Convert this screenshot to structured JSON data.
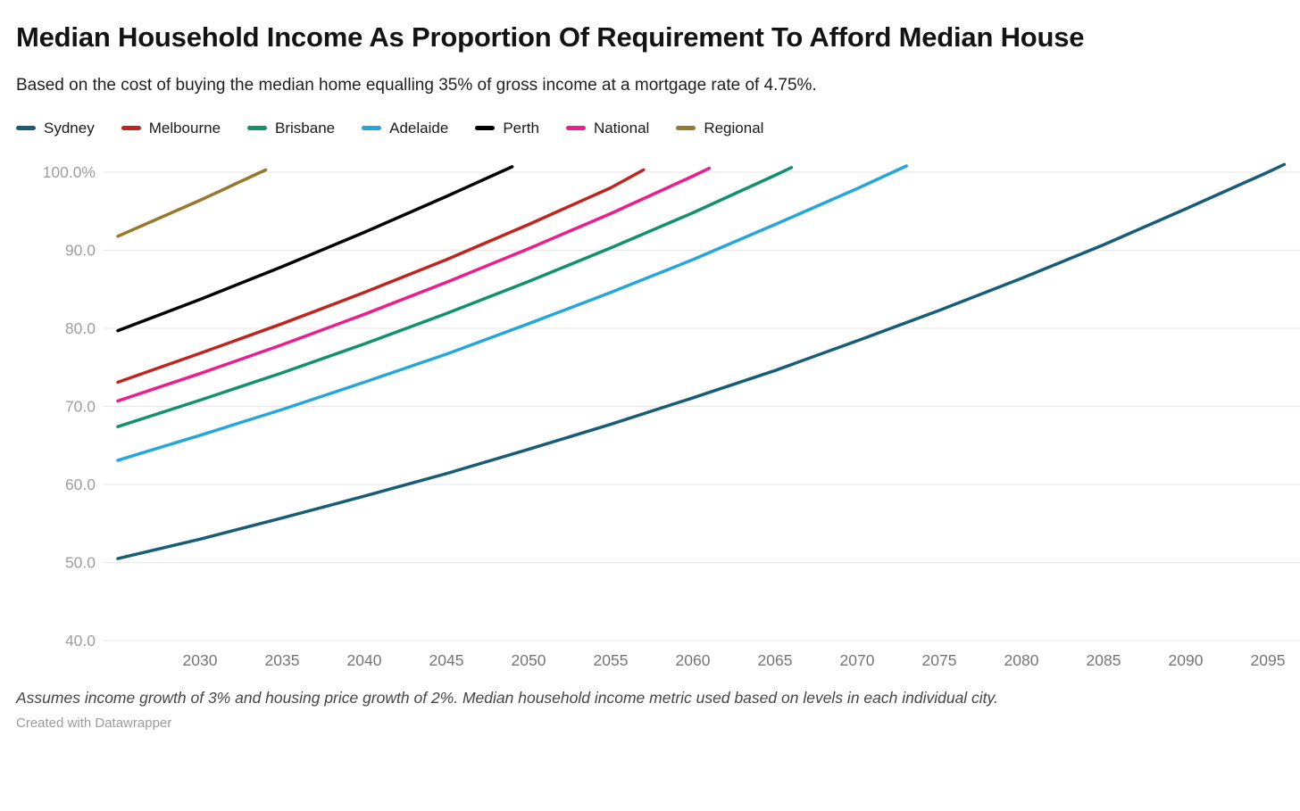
{
  "header": {
    "title": "Median Household Income As Proportion Of Requirement To Afford Median House",
    "subtitle": "Based on the cost of buying the median home equalling 35% of gross income at a mortgage rate of 4.75%."
  },
  "legend": [
    {
      "label": "Sydney",
      "color": "#175d77"
    },
    {
      "label": "Melbourne",
      "color": "#c0241e"
    },
    {
      "label": "Brisbane",
      "color": "#12916e"
    },
    {
      "label": "Adelaide",
      "color": "#27a6db"
    },
    {
      "label": "Perth",
      "color": "#000000"
    },
    {
      "label": "National",
      "color": "#ec1e8d"
    },
    {
      "label": "Regional",
      "color": "#97792c"
    }
  ],
  "chart_data": {
    "type": "line",
    "title": "Median Household Income As Proportion Of Requirement To Afford Median House",
    "xlabel": "",
    "ylabel": "",
    "xlim": [
      2025,
      2097.5
    ],
    "ylim": [
      40,
      102
    ],
    "grid": true,
    "legend_position": "top",
    "x_ticks": [
      2030,
      2035,
      2040,
      2045,
      2050,
      2055,
      2060,
      2065,
      2070,
      2075,
      2080,
      2085,
      2090,
      2095
    ],
    "y_ticks": [
      {
        "v": 100,
        "label": "100.0%"
      },
      {
        "v": 90,
        "label": "90.0"
      },
      {
        "v": 80,
        "label": "80.0"
      },
      {
        "v": 70,
        "label": "70.0"
      },
      {
        "v": 60,
        "label": "60.0"
      },
      {
        "v": 50,
        "label": "50.0"
      },
      {
        "v": 40,
        "label": "40.0"
      }
    ],
    "series": [
      {
        "name": "Sydney",
        "color": "#175d77",
        "points": [
          [
            2025,
            50.5
          ],
          [
            2030,
            53.0
          ],
          [
            2035,
            55.7
          ],
          [
            2040,
            58.5
          ],
          [
            2045,
            61.4
          ],
          [
            2050,
            64.5
          ],
          [
            2055,
            67.7
          ],
          [
            2060,
            71.1
          ],
          [
            2065,
            74.6
          ],
          [
            2070,
            78.4
          ],
          [
            2075,
            82.3
          ],
          [
            2080,
            86.4
          ],
          [
            2085,
            90.7
          ],
          [
            2090,
            95.3
          ],
          [
            2095,
            100.0
          ],
          [
            2096,
            101.0
          ]
        ]
      },
      {
        "name": "Melbourne",
        "color": "#c0241e",
        "points": [
          [
            2025,
            73.1
          ],
          [
            2030,
            76.8
          ],
          [
            2035,
            80.6
          ],
          [
            2040,
            84.6
          ],
          [
            2045,
            88.8
          ],
          [
            2050,
            93.3
          ],
          [
            2055,
            98.0
          ],
          [
            2057,
            100.3
          ]
        ]
      },
      {
        "name": "Brisbane",
        "color": "#12916e",
        "points": [
          [
            2025,
            67.4
          ],
          [
            2030,
            70.8
          ],
          [
            2035,
            74.3
          ],
          [
            2040,
            78.0
          ],
          [
            2045,
            81.9
          ],
          [
            2050,
            86.0
          ],
          [
            2055,
            90.3
          ],
          [
            2060,
            94.8
          ],
          [
            2065,
            99.6
          ],
          [
            2066,
            100.6
          ]
        ]
      },
      {
        "name": "Adelaide",
        "color": "#27a6db",
        "points": [
          [
            2025,
            63.1
          ],
          [
            2030,
            66.3
          ],
          [
            2035,
            69.6
          ],
          [
            2040,
            73.1
          ],
          [
            2045,
            76.7
          ],
          [
            2050,
            80.6
          ],
          [
            2055,
            84.6
          ],
          [
            2060,
            88.8
          ],
          [
            2065,
            93.3
          ],
          [
            2070,
            97.9
          ],
          [
            2073,
            100.8
          ]
        ]
      },
      {
        "name": "Perth",
        "color": "#000000",
        "points": [
          [
            2025,
            79.7
          ],
          [
            2030,
            83.7
          ],
          [
            2035,
            87.9
          ],
          [
            2040,
            92.3
          ],
          [
            2045,
            96.9
          ],
          [
            2049,
            100.7
          ]
        ]
      },
      {
        "name": "National",
        "color": "#ec1e8d",
        "points": [
          [
            2025,
            70.7
          ],
          [
            2030,
            74.2
          ],
          [
            2035,
            77.9
          ],
          [
            2040,
            81.8
          ],
          [
            2045,
            85.9
          ],
          [
            2050,
            90.2
          ],
          [
            2055,
            94.7
          ],
          [
            2060,
            99.5
          ],
          [
            2061,
            100.5
          ]
        ]
      },
      {
        "name": "Regional",
        "color": "#97792c",
        "points": [
          [
            2025,
            91.8
          ],
          [
            2030,
            96.4
          ],
          [
            2034,
            100.3
          ]
        ]
      }
    ]
  },
  "footer": {
    "note": "Assumes income growth of 3% and housing price growth of 2%. Median household income metric used based on levels in each individual city.",
    "credit": "Created with Datawrapper"
  }
}
